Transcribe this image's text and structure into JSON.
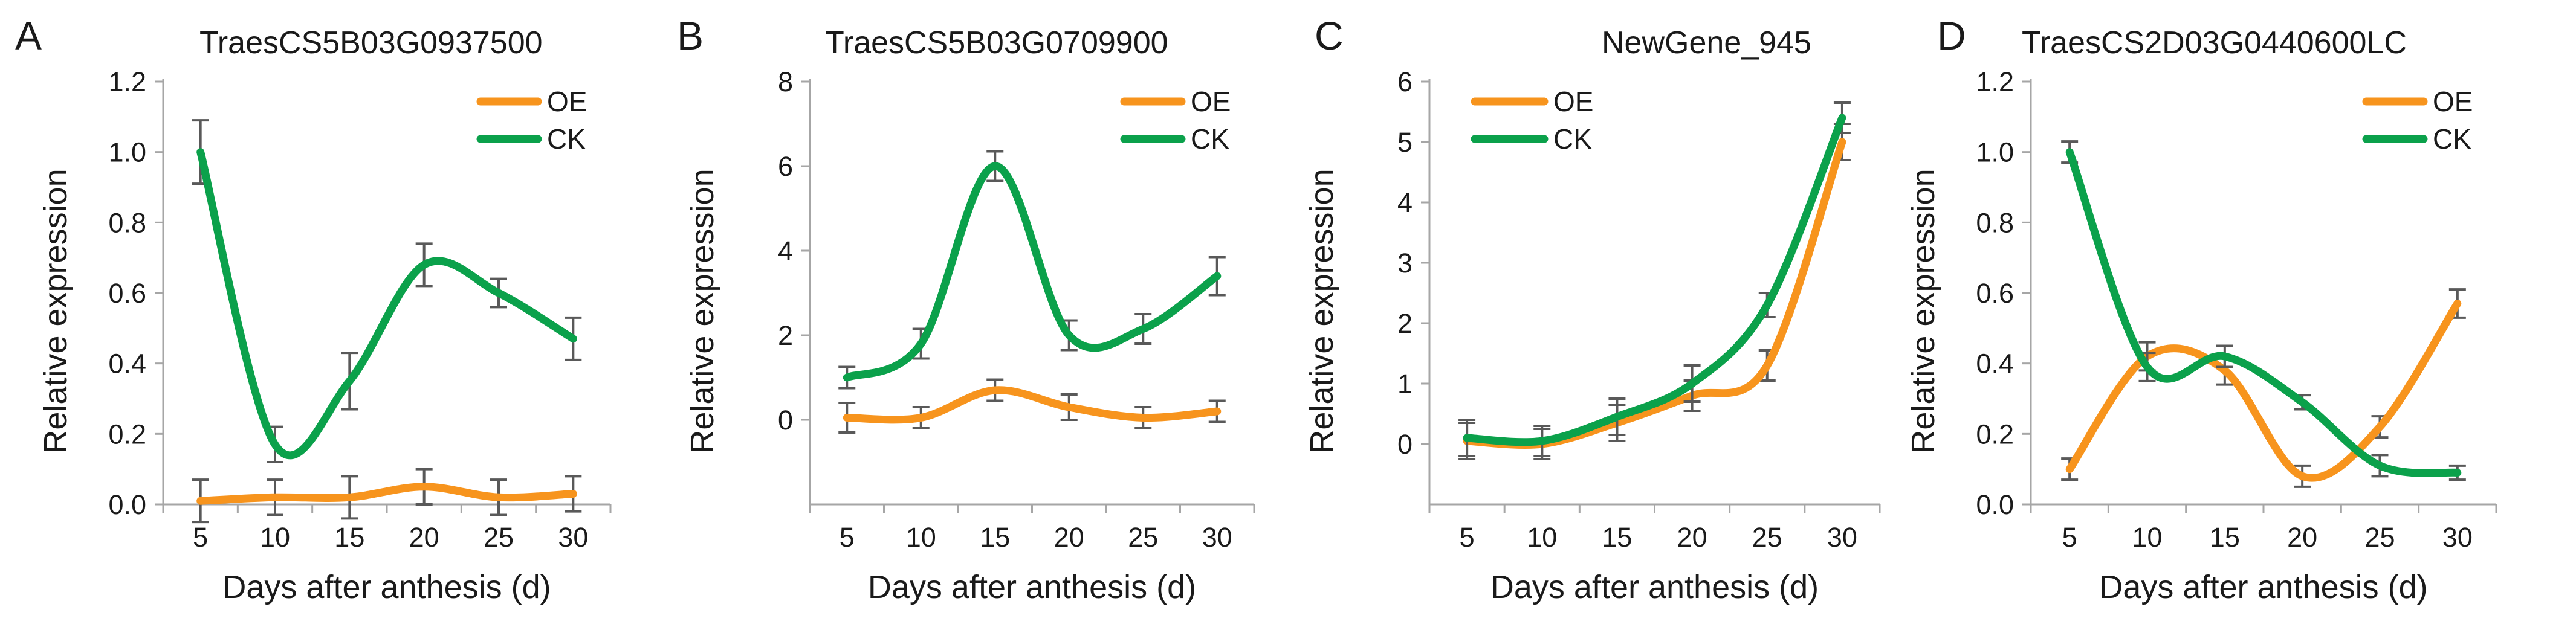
{
  "colors": {
    "oe": "#F7941D",
    "ck": "#0BA14B",
    "axis": "#A6A6A6",
    "error": "#595959",
    "text": "#1a1a1a"
  },
  "chart_data": [
    {
      "type": "line",
      "panel_letter": "A",
      "title": "TraesCS5B03G0937500",
      "xlabel": "Days after anthesis (d)",
      "ylabel": "Relative expression",
      "x": [
        5,
        10,
        15,
        20,
        25,
        30
      ],
      "xlim": [
        2.5,
        32.5
      ],
      "ylim": [
        0,
        1.2
      ],
      "yticks": [
        0,
        0.2,
        0.4,
        0.6,
        0.8,
        1.0,
        1.2
      ],
      "ytick_labels": [
        "0.0",
        "0.2",
        "0.4",
        "0.6",
        "0.8",
        "1.0",
        "1.2"
      ],
      "legend_position": "top-right",
      "series": [
        {
          "name": "OE",
          "color_key": "oe",
          "values": [
            0.01,
            0.02,
            0.02,
            0.05,
            0.02,
            0.03
          ],
          "errors": [
            0.06,
            0.05,
            0.06,
            0.05,
            0.05,
            0.05
          ]
        },
        {
          "name": "CK",
          "color_key": "ck",
          "values": [
            1.0,
            0.17,
            0.35,
            0.68,
            0.6,
            0.47
          ],
          "errors": [
            0.09,
            0.05,
            0.08,
            0.06,
            0.04,
            0.06
          ]
        }
      ]
    },
    {
      "type": "line",
      "panel_letter": "B",
      "title": "TraesCS5B03G0709900",
      "xlabel": "Days after anthesis (d)",
      "ylabel": "Relative expression",
      "x": [
        5,
        10,
        15,
        20,
        25,
        30
      ],
      "xlim": [
        2.5,
        32.5
      ],
      "ylim": [
        -2,
        8
      ],
      "yticks": [
        0,
        2,
        4,
        6,
        8
      ],
      "ytick_labels": [
        "0",
        "2",
        "4",
        "6",
        "8"
      ],
      "legend_position": "top-right",
      "series": [
        {
          "name": "OE",
          "color_key": "oe",
          "values": [
            0.05,
            0.05,
            0.7,
            0.3,
            0.05,
            0.2
          ],
          "errors": [
            0.35,
            0.25,
            0.25,
            0.3,
            0.25,
            0.25
          ]
        },
        {
          "name": "CK",
          "color_key": "ck",
          "values": [
            1.0,
            1.8,
            6.0,
            2.0,
            2.15,
            3.4
          ],
          "errors": [
            0.25,
            0.35,
            0.35,
            0.35,
            0.35,
            0.45
          ]
        }
      ]
    },
    {
      "type": "line",
      "panel_letter": "C",
      "title": "NewGene_945",
      "xlabel": "Days after anthesis (d)",
      "ylabel": "Relative expression",
      "x": [
        5,
        10,
        15,
        20,
        25,
        30
      ],
      "xlim": [
        2.5,
        32.5
      ],
      "ylim": [
        -1,
        6
      ],
      "yticks": [
        0,
        1,
        2,
        3,
        4,
        5,
        6
      ],
      "ytick_labels": [
        "0",
        "1",
        "2",
        "3",
        "4",
        "5",
        "6"
      ],
      "legend_position": "top-left",
      "series": [
        {
          "name": "OE",
          "color_key": "oe",
          "values": [
            0.05,
            0.0,
            0.35,
            0.8,
            1.3,
            5.0
          ],
          "errors": [
            0.3,
            0.25,
            0.3,
            0.25,
            0.25,
            0.3
          ]
        },
        {
          "name": "CK",
          "color_key": "ck",
          "values": [
            0.1,
            0.05,
            0.45,
            1.0,
            2.3,
            5.4
          ],
          "errors": [
            0.3,
            0.25,
            0.3,
            0.3,
            0.2,
            0.25
          ]
        }
      ]
    },
    {
      "type": "line",
      "panel_letter": "D",
      "title": "TraesCS2D03G0440600LC",
      "xlabel": "Days after anthesis (d)",
      "ylabel": "Relative expression",
      "x": [
        5,
        10,
        15,
        20,
        25,
        30
      ],
      "xlim": [
        2.5,
        32.5
      ],
      "ylim": [
        0,
        1.2
      ],
      "yticks": [
        0,
        0.2,
        0.4,
        0.6,
        0.8,
        1.0,
        1.2
      ],
      "ytick_labels": [
        "0.0",
        "0.2",
        "0.4",
        "0.6",
        "0.8",
        "1.0",
        "1.2"
      ],
      "legend_position": "top-right",
      "series": [
        {
          "name": "OE",
          "color_key": "oe",
          "values": [
            0.1,
            0.42,
            0.38,
            0.08,
            0.22,
            0.57
          ],
          "errors": [
            0.03,
            0.04,
            0.04,
            0.03,
            0.03,
            0.04
          ]
        },
        {
          "name": "CK",
          "color_key": "ck",
          "values": [
            1.0,
            0.39,
            0.42,
            0.29,
            0.11,
            0.09
          ],
          "errors": [
            0.03,
            0.04,
            0.03,
            0.02,
            0.03,
            0.02
          ]
        }
      ]
    }
  ]
}
